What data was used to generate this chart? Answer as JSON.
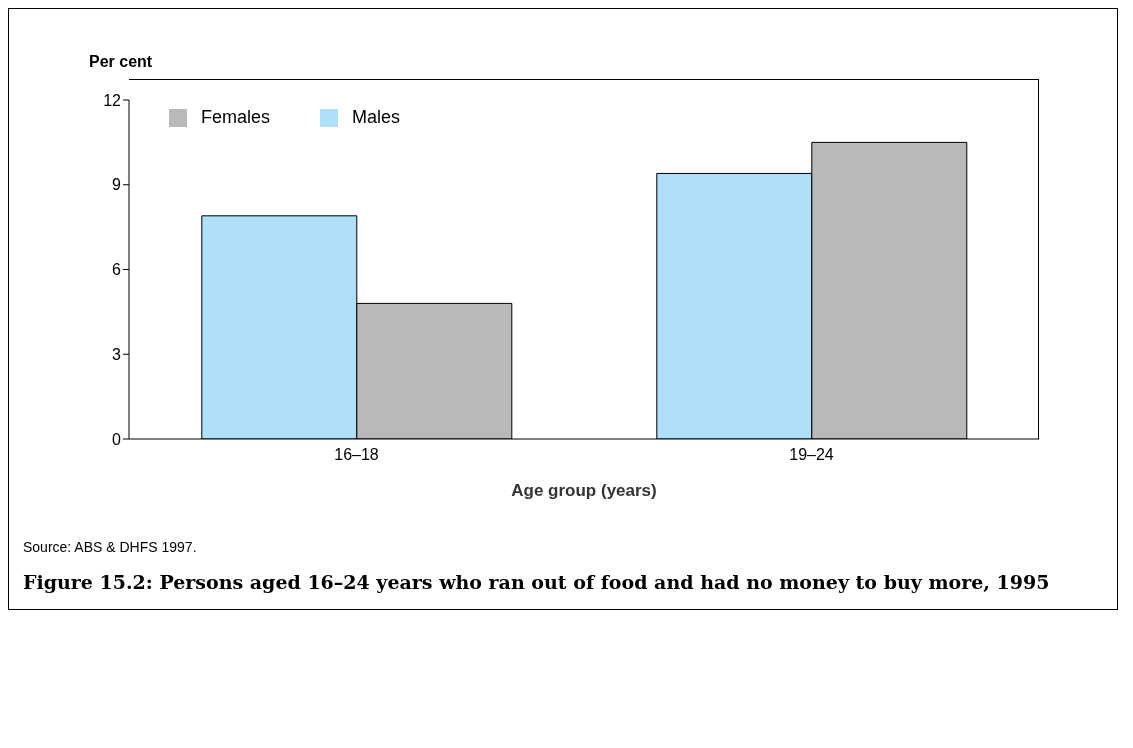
{
  "chart_data": {
    "type": "bar",
    "title": "Figure 15.2: Persons aged 16–24 years who ran out of food and had no money to buy more, 1995",
    "xlabel": "Age group (years)",
    "ylabel": "Per cent",
    "annotations": [
      "Source: ABS & DHFS 1997."
    ],
    "categories": [
      "16–18",
      "19–24"
    ],
    "series": [
      {
        "name": "Males",
        "color": "#b0dff9",
        "values": [
          7.9,
          9.4
        ]
      },
      {
        "name": "Females",
        "color": "#b9b9bb",
        "values": [
          4.8,
          10.5
        ]
      }
    ],
    "ylim": [
      0,
      12
    ],
    "yticks": [
      0,
      3,
      6,
      9,
      12
    ],
    "grid": false,
    "legend": "top left"
  }
}
